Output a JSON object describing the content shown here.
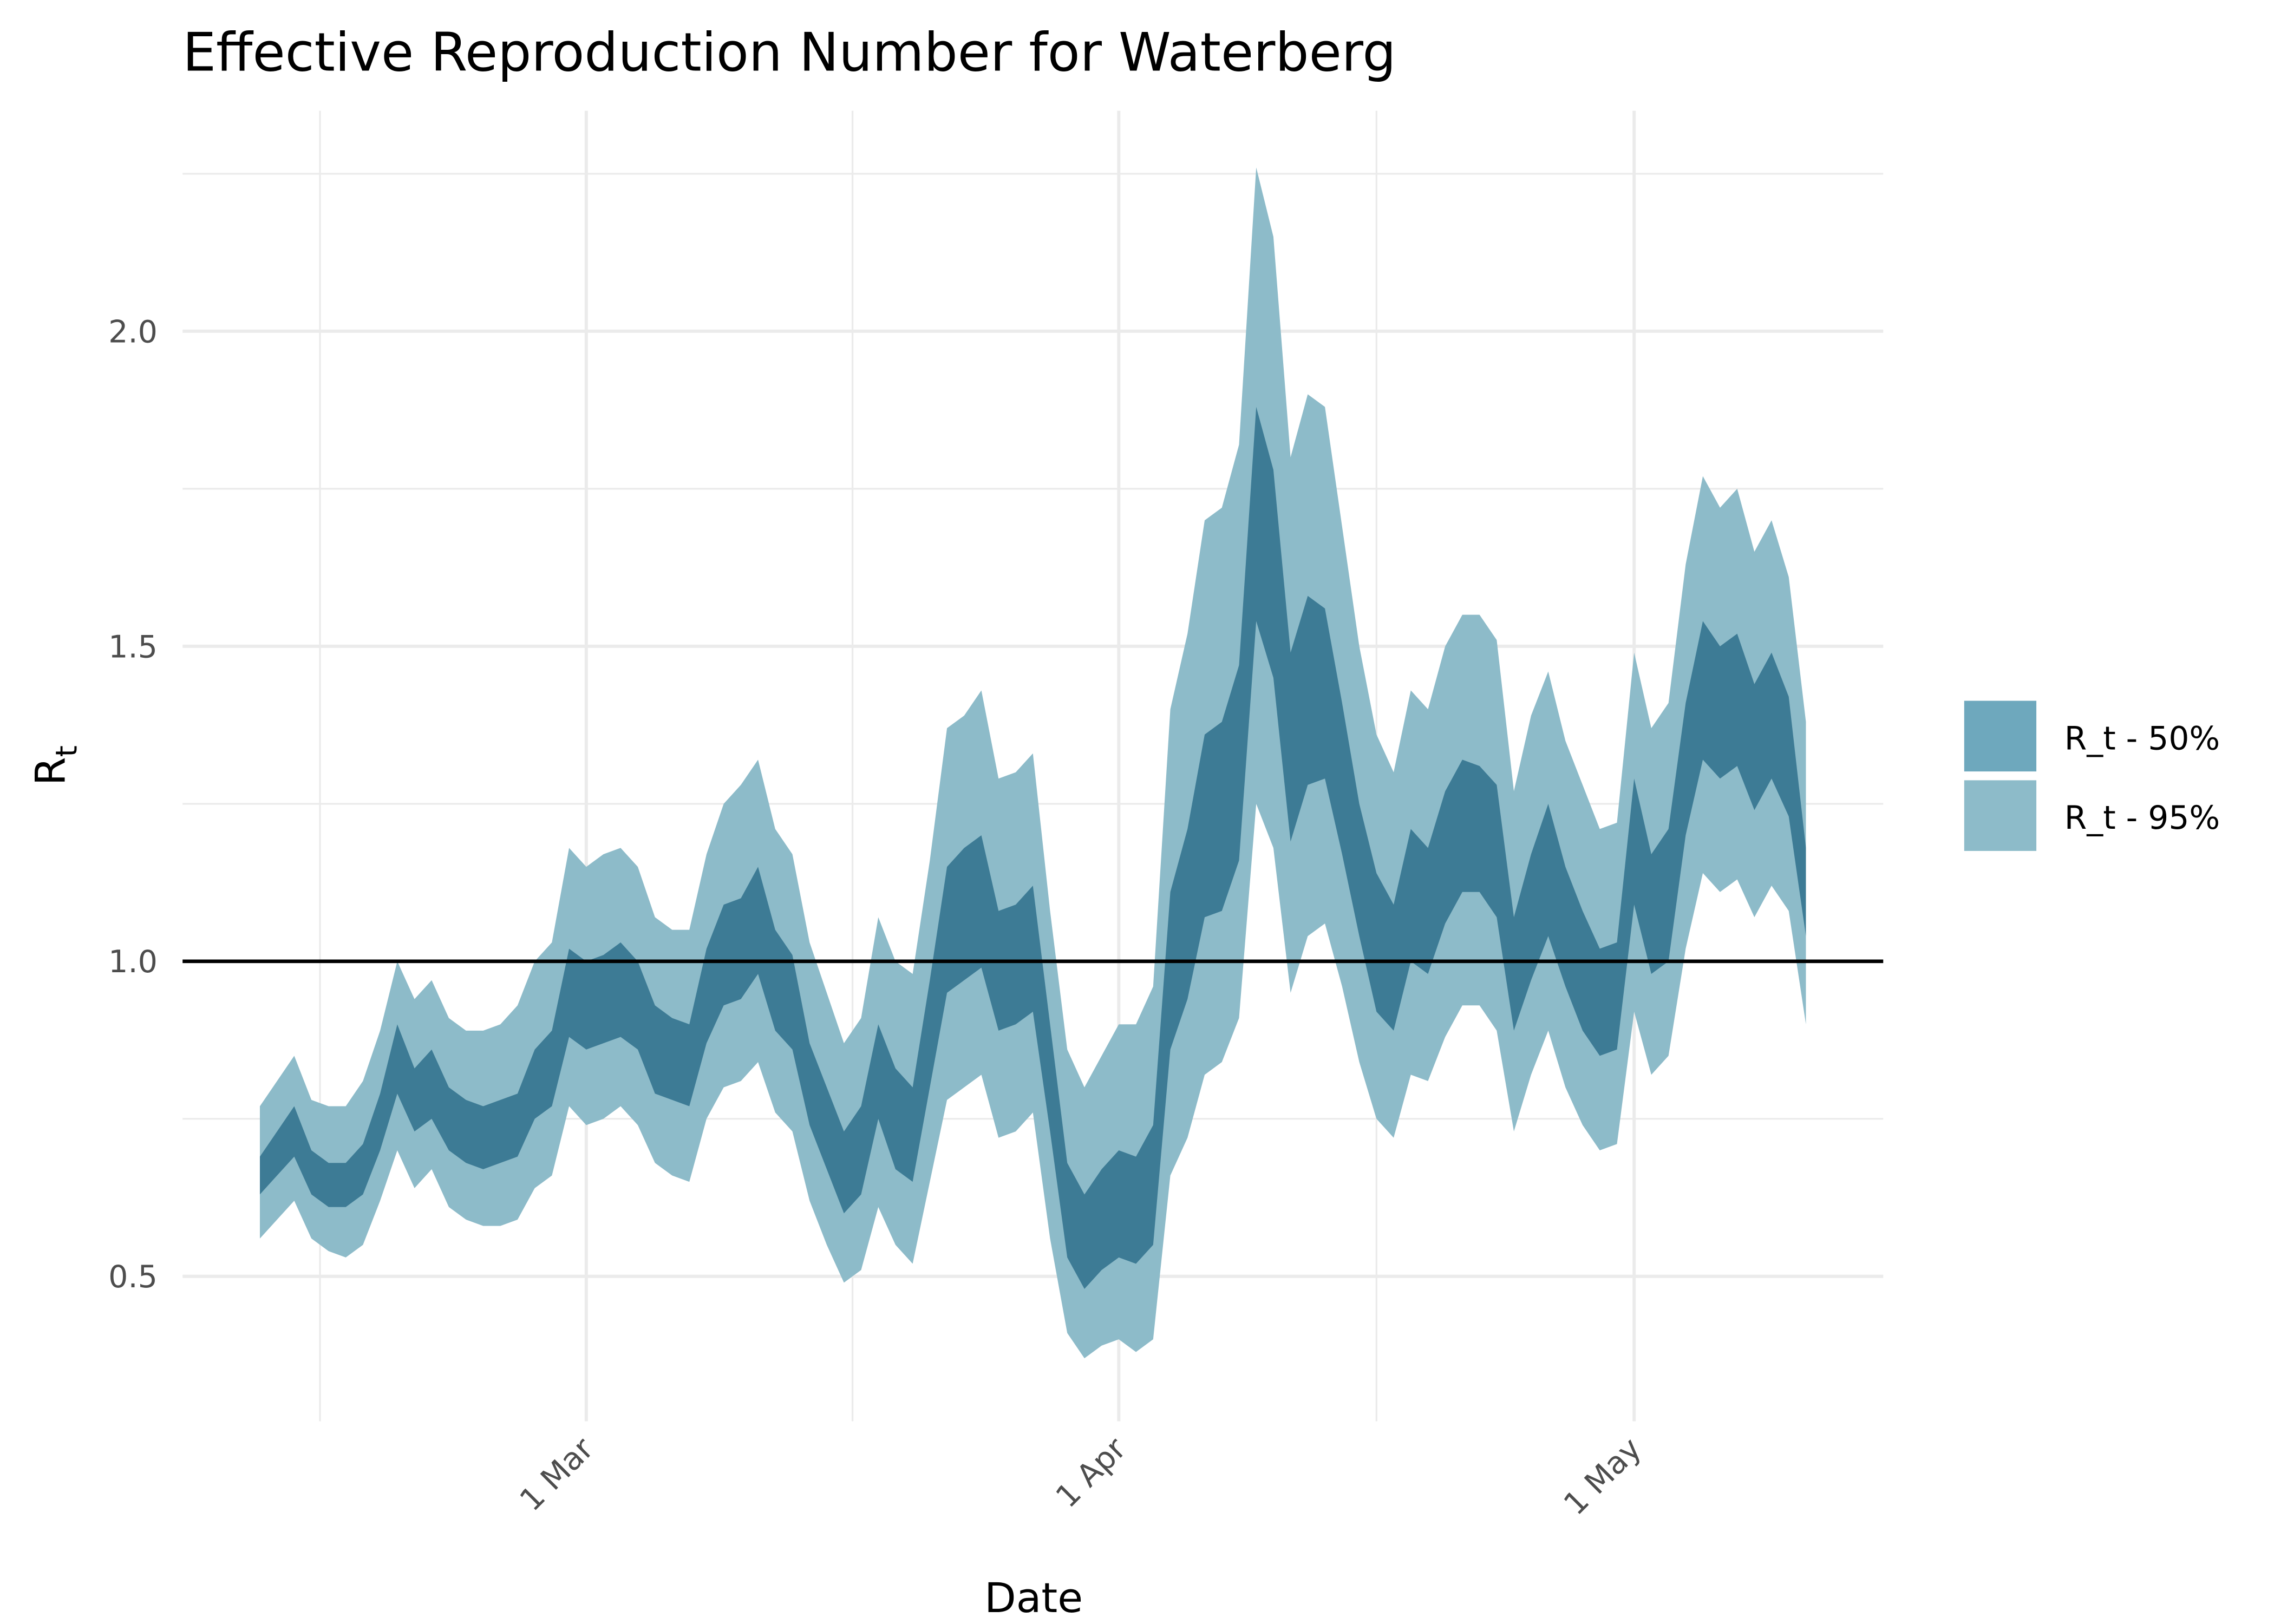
{
  "chart_data": {
    "type": "ribbon",
    "title": "Effective Reproduction Number for Waterberg",
    "x_label": "Date",
    "y_label": "R",
    "y_label_subscript": "t",
    "x": [
      "11 Feb",
      "12 Feb",
      "13 Feb",
      "14 Feb",
      "15 Feb",
      "16 Feb",
      "17 Feb",
      "18 Feb",
      "19 Feb",
      "20 Feb",
      "21 Feb",
      "22 Feb",
      "23 Feb",
      "24 Feb",
      "25 Feb",
      "26 Feb",
      "27 Feb",
      "28 Feb",
      "29 Feb",
      "1 Mar",
      "2 Mar",
      "3 Mar",
      "4 Mar",
      "5 Mar",
      "6 Mar",
      "7 Mar",
      "8 Mar",
      "9 Mar",
      "10 Mar",
      "11 Mar",
      "12 Mar",
      "13 Mar",
      "14 Mar",
      "15 Mar",
      "16 Mar",
      "17 Mar",
      "18 Mar",
      "19 Mar",
      "20 Mar",
      "21 Mar",
      "22 Mar",
      "23 Mar",
      "24 Mar",
      "25 Mar",
      "26 Mar",
      "27 Mar",
      "28 Mar",
      "29 Mar",
      "30 Mar",
      "31 Mar",
      "1 Apr",
      "2 Apr",
      "3 Apr",
      "4 Apr",
      "5 Apr",
      "6 Apr",
      "7 Apr",
      "8 Apr",
      "9 Apr",
      "10 Apr",
      "11 Apr",
      "12 Apr",
      "13 Apr",
      "14 Apr",
      "15 Apr",
      "16 Apr",
      "17 Apr",
      "18 Apr",
      "19 Apr",
      "20 Apr",
      "21 Apr",
      "22 Apr",
      "23 Apr",
      "24 Apr",
      "25 Apr",
      "26 Apr",
      "27 Apr",
      "28 Apr",
      "29 Apr",
      "30 Apr",
      "1 May",
      "2 May",
      "3 May",
      "4 May",
      "5 May",
      "6 May",
      "7 May",
      "8 May",
      "9 May",
      "10 May",
      "11 May"
    ],
    "xticks": [
      "1 Mar",
      "1 Apr",
      "1 May"
    ],
    "ylim": [
      0.27,
      2.35
    ],
    "yticks": [
      0.5,
      {
        "value": 1,
        "label": "1.0"
      },
      1.5,
      {
        "value": 2,
        "label": "2.0"
      }
    ],
    "grid": true,
    "reference_line": 1,
    "legend": "right",
    "series": [
      {
        "name": "R_t - 95%",
        "color": "#8dbbc9",
        "lower": [
          0.56,
          0.59,
          0.62,
          0.56,
          0.54,
          0.53,
          0.55,
          0.62,
          0.7,
          0.64,
          0.67,
          0.61,
          0.59,
          0.58,
          0.58,
          0.59,
          0.64,
          0.66,
          0.77,
          0.74,
          0.75,
          0.77,
          0.74,
          0.68,
          0.66,
          0.65,
          0.75,
          0.8,
          0.81,
          0.84,
          0.76,
          0.73,
          0.62,
          0.55,
          0.49,
          0.51,
          0.61,
          0.55,
          0.52,
          0.65,
          0.78,
          0.8,
          0.82,
          0.72,
          0.73,
          0.76,
          0.56,
          0.41,
          0.37,
          0.39,
          0.4,
          0.38,
          0.4,
          0.66,
          0.72,
          0.82,
          0.84,
          0.91,
          1.25,
          1.18,
          0.95,
          1.04,
          1.06,
          0.96,
          0.84,
          0.75,
          0.72,
          0.82,
          0.81,
          0.88,
          0.93,
          0.93,
          0.89,
          0.73,
          0.82,
          0.89,
          0.8,
          0.74,
          0.7,
          0.71,
          0.92,
          0.82,
          0.85,
          1.02,
          1.14,
          1.11,
          1.13,
          1.07,
          1.12,
          1.08,
          0.9
        ],
        "upper": [
          0.77,
          0.81,
          0.85,
          0.78,
          0.77,
          0.77,
          0.81,
          0.89,
          1.0,
          0.94,
          0.97,
          0.91,
          0.89,
          0.89,
          0.9,
          0.93,
          1.0,
          1.03,
          1.18,
          1.15,
          1.17,
          1.18,
          1.15,
          1.07,
          1.05,
          1.05,
          1.17,
          1.25,
          1.28,
          1.32,
          1.21,
          1.17,
          1.03,
          0.95,
          0.87,
          0.91,
          1.07,
          1.0,
          0.98,
          1.16,
          1.37,
          1.39,
          1.43,
          1.29,
          1.3,
          1.33,
          1.08,
          0.86,
          0.8,
          0.85,
          0.9,
          0.9,
          0.96,
          1.4,
          1.52,
          1.7,
          1.72,
          1.82,
          2.26,
          2.15,
          1.8,
          1.9,
          1.88,
          1.69,
          1.5,
          1.36,
          1.3,
          1.43,
          1.4,
          1.5,
          1.55,
          1.55,
          1.51,
          1.27,
          1.39,
          1.46,
          1.35,
          1.28,
          1.21,
          1.22,
          1.49,
          1.37,
          1.41,
          1.63,
          1.77,
          1.72,
          1.75,
          1.65,
          1.7,
          1.61,
          1.38
        ]
      },
      {
        "name": "R_t - 50%",
        "color": "#6ea8bd",
        "lower": [
          0.63,
          0.66,
          0.69,
          0.63,
          0.61,
          0.61,
          0.63,
          0.7,
          0.79,
          0.73,
          0.75,
          0.7,
          0.68,
          0.67,
          0.68,
          0.69,
          0.75,
          0.77,
          0.88,
          0.86,
          0.87,
          0.88,
          0.86,
          0.79,
          0.78,
          0.77,
          0.87,
          0.93,
          0.94,
          0.98,
          0.89,
          0.86,
          0.74,
          0.67,
          0.6,
          0.63,
          0.75,
          0.67,
          0.65,
          0.8,
          0.95,
          0.97,
          0.99,
          0.89,
          0.9,
          0.92,
          0.73,
          0.53,
          0.48,
          0.51,
          0.53,
          0.52,
          0.55,
          0.86,
          0.94,
          1.07,
          1.08,
          1.16,
          1.54,
          1.45,
          1.19,
          1.28,
          1.29,
          1.17,
          1.04,
          0.92,
          0.89,
          1.0,
          0.98,
          1.06,
          1.11,
          1.11,
          1.07,
          0.89,
          0.97,
          1.04,
          0.96,
          0.89,
          0.85,
          0.86,
          1.09,
          0.98,
          1.0,
          1.2,
          1.32,
          1.29,
          1.31,
          1.24,
          1.29,
          1.23,
          1.04
        ],
        "upper": [
          0.69,
          0.73,
          0.77,
          0.7,
          0.68,
          0.68,
          0.71,
          0.79,
          0.9,
          0.83,
          0.86,
          0.8,
          0.78,
          0.77,
          0.78,
          0.79,
          0.86,
          0.89,
          1.02,
          1.0,
          1.01,
          1.03,
          1.0,
          0.93,
          0.91,
          0.9,
          1.02,
          1.09,
          1.1,
          1.15,
          1.05,
          1.01,
          0.87,
          0.8,
          0.73,
          0.77,
          0.9,
          0.83,
          0.8,
          0.97,
          1.15,
          1.18,
          1.2,
          1.08,
          1.09,
          1.12,
          0.9,
          0.68,
          0.63,
          0.67,
          0.7,
          0.69,
          0.74,
          1.11,
          1.21,
          1.36,
          1.38,
          1.47,
          1.88,
          1.78,
          1.49,
          1.58,
          1.56,
          1.41,
          1.25,
          1.14,
          1.09,
          1.21,
          1.18,
          1.27,
          1.32,
          1.31,
          1.28,
          1.07,
          1.17,
          1.25,
          1.15,
          1.08,
          1.02,
          1.03,
          1.29,
          1.17,
          1.21,
          1.41,
          1.54,
          1.5,
          1.52,
          1.44,
          1.49,
          1.42,
          1.18
        ]
      }
    ]
  }
}
